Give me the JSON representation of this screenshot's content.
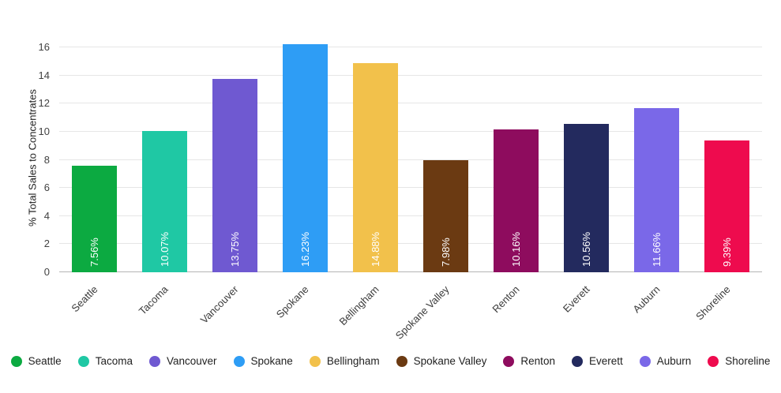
{
  "chart_data": {
    "type": "bar",
    "title": "",
    "xlabel": "",
    "ylabel": "% Total Sales to Concentrates",
    "ylim": [
      0,
      16
    ],
    "yticks": [
      0,
      2,
      4,
      6,
      8,
      10,
      12,
      14,
      16
    ],
    "grid": true,
    "legend_position": "bottom",
    "categories": [
      "Seattle",
      "Tacoma",
      "Vancouver",
      "Spokane",
      "Bellingham",
      "Spokane Valley",
      "Renton",
      "Everett",
      "Auburn",
      "Shoreline"
    ],
    "values": [
      7.56,
      10.07,
      13.75,
      16.23,
      14.88,
      7.98,
      10.16,
      10.56,
      11.66,
      9.39
    ],
    "bar_labels": [
      "7.56%",
      "10.07%",
      "13.75%",
      "16.23%",
      "14.88%",
      "7.98%",
      "10.16%",
      "10.56%",
      "11.66%",
      "9.39%"
    ],
    "colors": [
      "#0caa41",
      "#1fc8a4",
      "#6f59d1",
      "#2e9df5",
      "#f2c14b",
      "#6b3a12",
      "#8e0c5e",
      "#232a5e",
      "#7a68e8",
      "#ee0b4e"
    ]
  }
}
